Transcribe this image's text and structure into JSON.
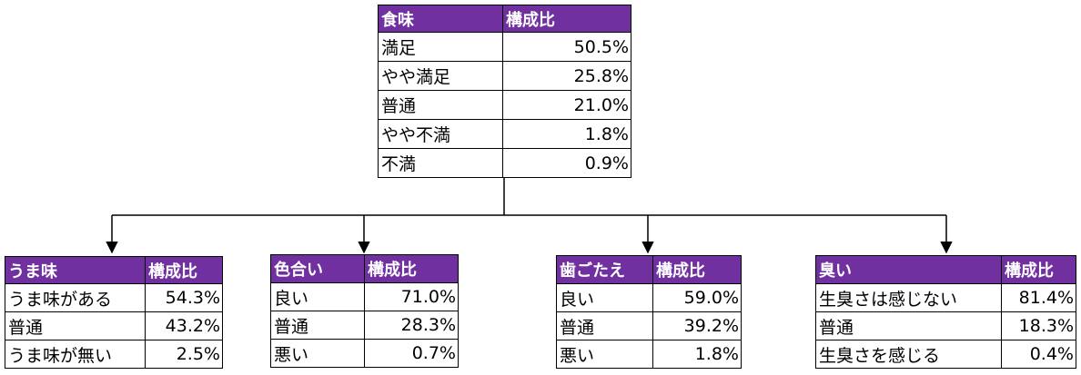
{
  "top": {
    "header": [
      "食味",
      "構成比"
    ],
    "rows": [
      [
        "満足",
        "50.5%"
      ],
      [
        "やや満足",
        "25.8%"
      ],
      [
        "普通",
        "21.0%"
      ],
      [
        "やや不満",
        "1.8%"
      ],
      [
        "不満",
        "0.9%"
      ]
    ]
  },
  "children": [
    {
      "header": [
        "うま味",
        "構成比"
      ],
      "rows": [
        [
          "うま味がある",
          "54.3%"
        ],
        [
          "普通",
          "43.2%"
        ],
        [
          "うま味が無い",
          "2.5%"
        ]
      ]
    },
    {
      "header": [
        "色合い",
        "構成比"
      ],
      "rows": [
        [
          "良い",
          "71.0%"
        ],
        [
          "普通",
          "28.3%"
        ],
        [
          "悪い",
          "0.7%"
        ]
      ]
    },
    {
      "header": [
        "歯ごたえ",
        "構成比"
      ],
      "rows": [
        [
          "良い",
          "59.0%"
        ],
        [
          "普通",
          "39.2%"
        ],
        [
          "悪い",
          "1.8%"
        ]
      ]
    },
    {
      "header": [
        "臭い",
        "構成比"
      ],
      "rows": [
        [
          "生臭さは感じない",
          "81.4%"
        ],
        [
          "普通",
          "18.3%"
        ],
        [
          "生臭さを感じる",
          "0.4%"
        ]
      ]
    }
  ],
  "colors": {
    "header_bg": "#7030a0",
    "header_text": "#ffffff",
    "border": "#000000"
  }
}
